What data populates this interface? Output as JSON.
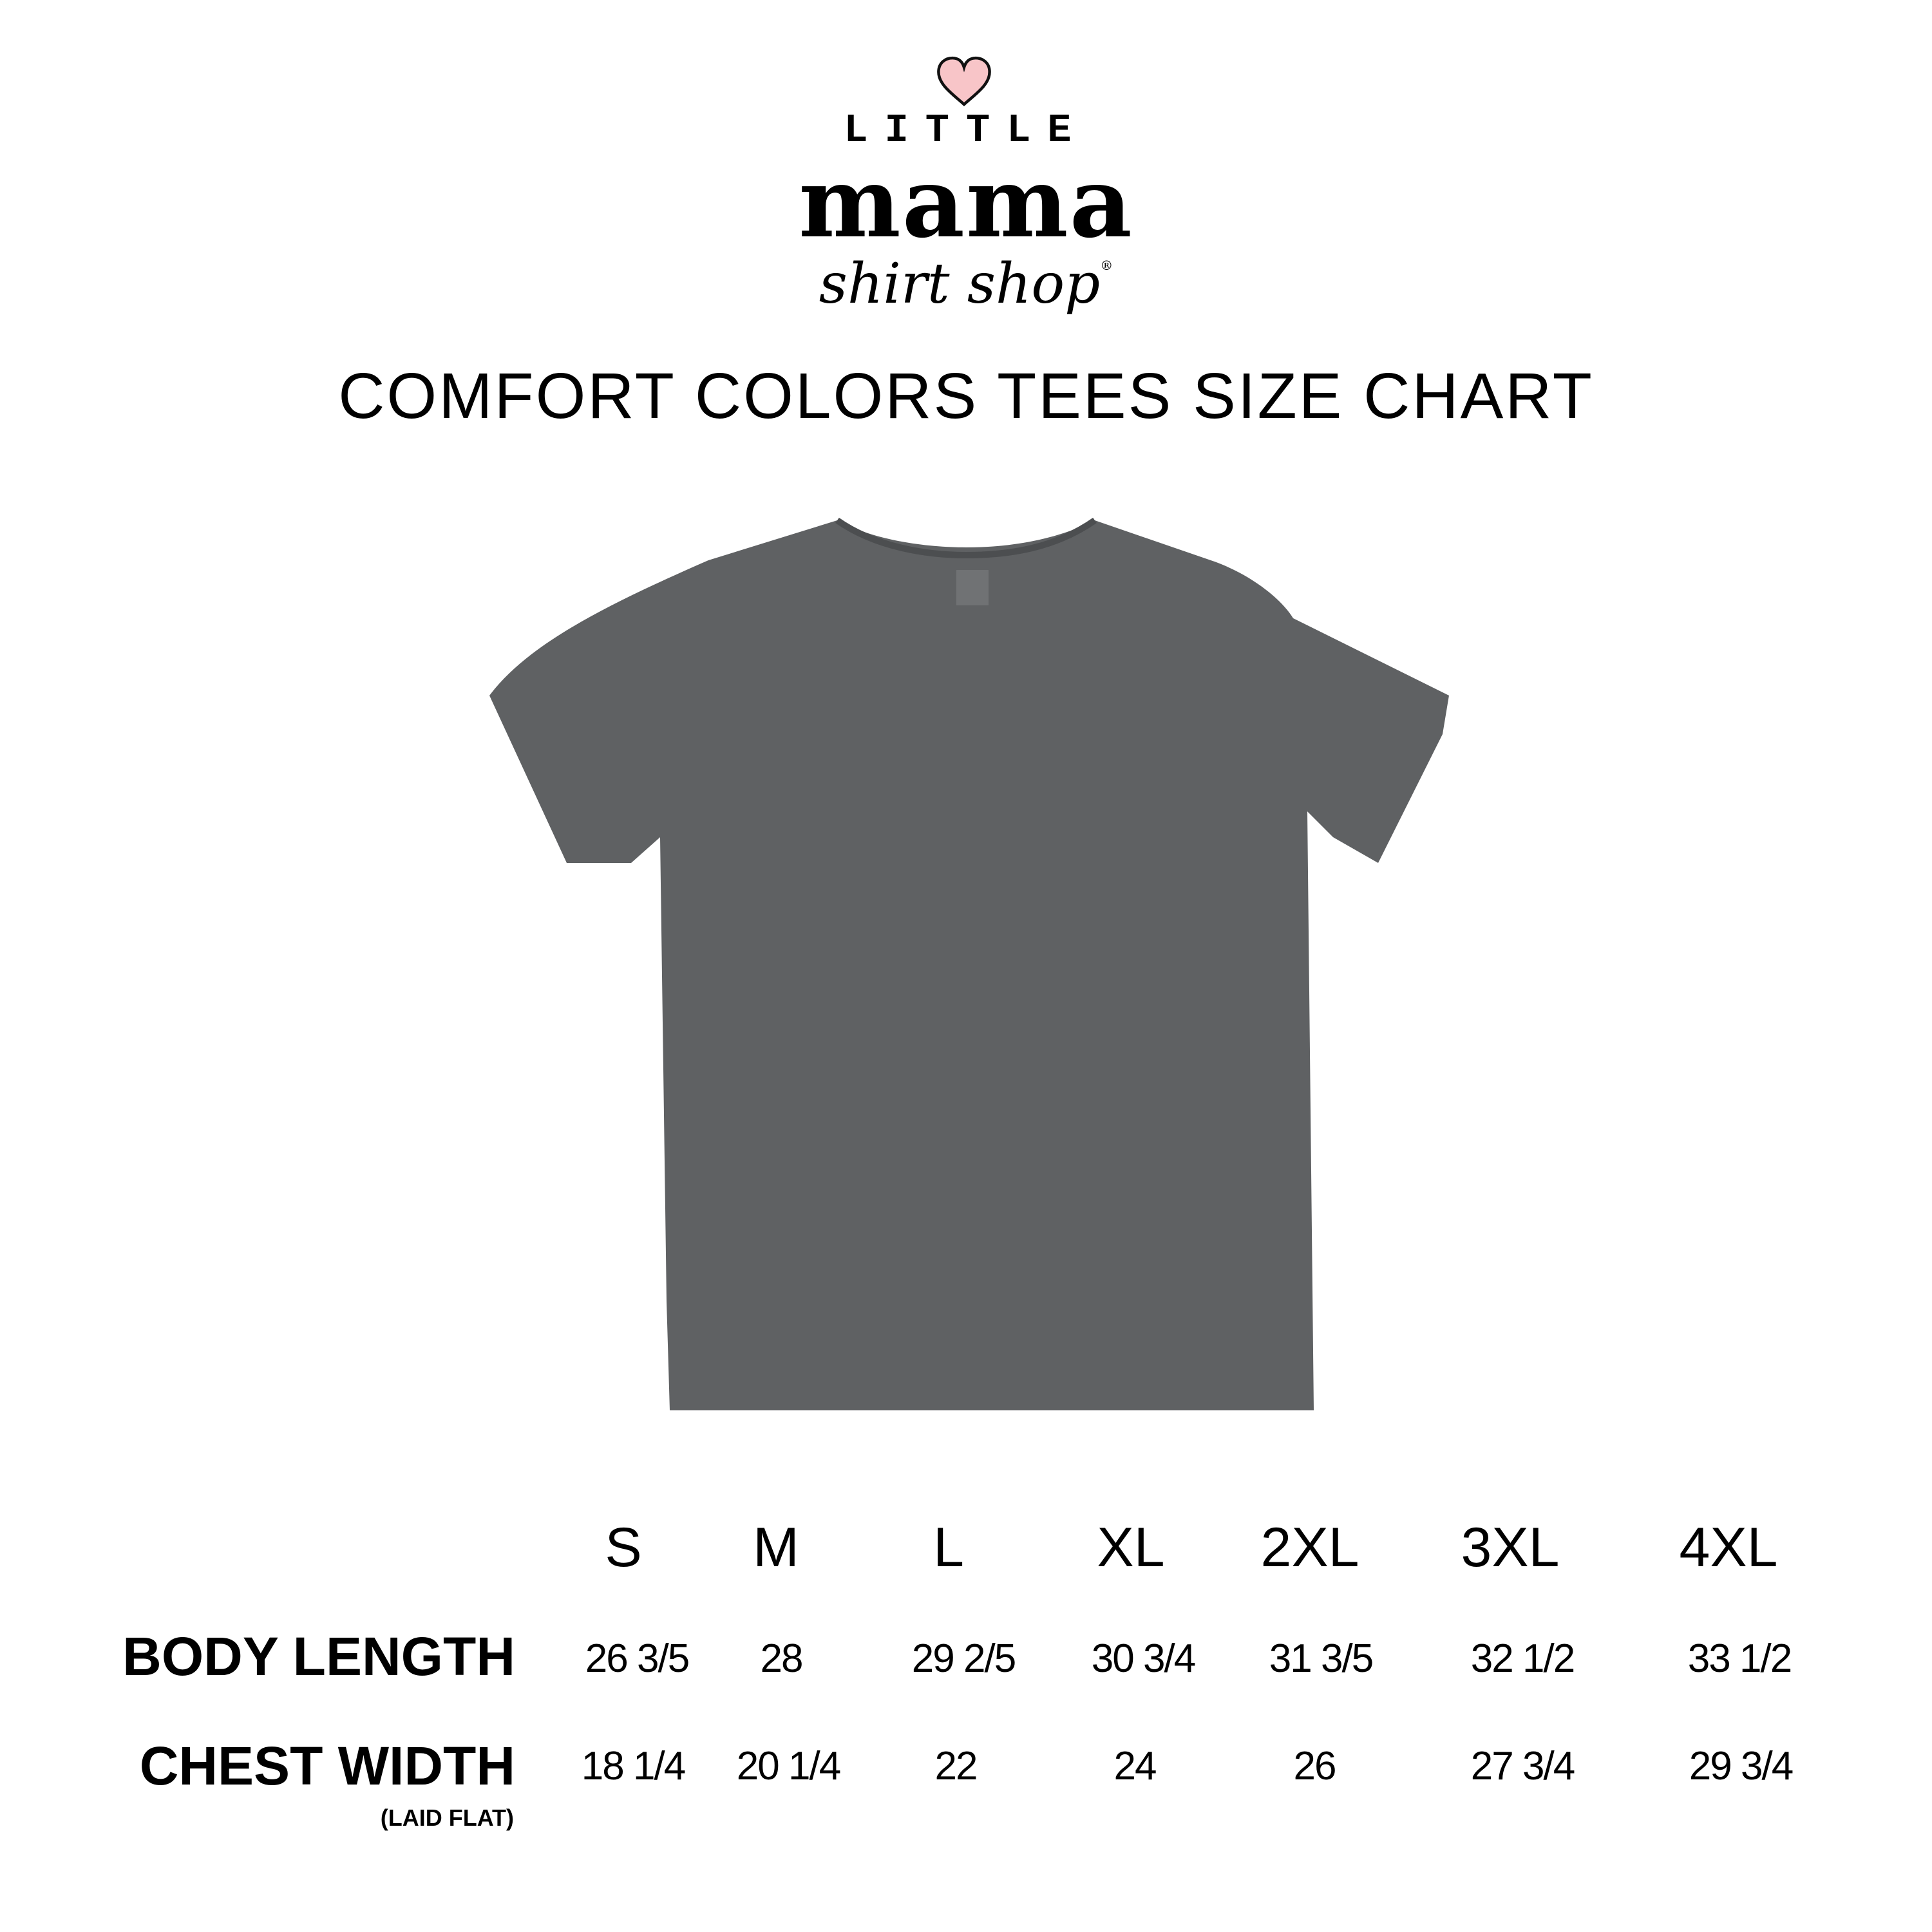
{
  "logo": {
    "line1": "LITTLE",
    "line2": "mama",
    "line3": "shirt shop",
    "registered": "®",
    "heart_color": "#f8c5c8"
  },
  "title": "COMFORT COLORS TEES SIZE CHART",
  "shirt_color": "#5f6163",
  "chart_data": {
    "type": "table",
    "columns": [
      "S",
      "M",
      "L",
      "XL",
      "2XL",
      "3XL",
      "4XL"
    ],
    "rows": [
      {
        "label": "BODY LENGTH",
        "sublabel": "",
        "values": [
          "26 3/5",
          "28",
          "29 2/5",
          "30 3/4",
          "31 3/5",
          "32 1/2",
          "33 1/2"
        ]
      },
      {
        "label": "CHEST WIDTH",
        "sublabel": "(LAID FLAT)",
        "values": [
          "18 1/4",
          "20 1/4",
          "22",
          "24",
          "26",
          "27 3/4",
          "29 3/4"
        ]
      }
    ]
  }
}
